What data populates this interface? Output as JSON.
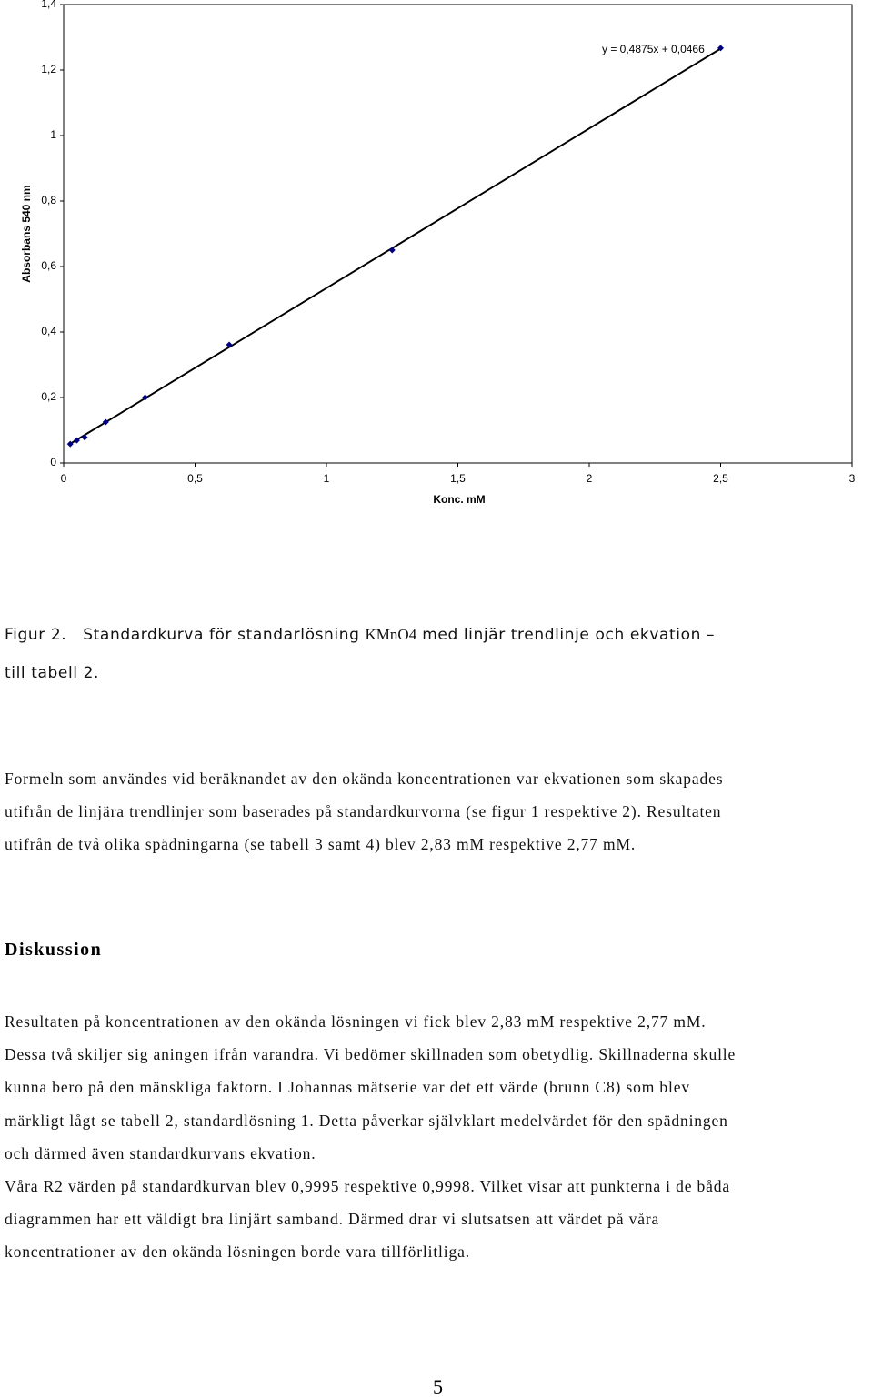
{
  "chart_data": {
    "type": "scatter",
    "x_label": "Konc. mM",
    "y_label": "Absorbans 540 nm",
    "x": [
      0.025,
      0.05,
      0.08,
      0.16,
      0.31,
      0.63,
      1.25,
      2.5
    ],
    "series": [
      {
        "color": "#000080",
        "values": [
          0.058,
          0.069,
          0.078,
          0.125,
          0.2,
          0.361,
          0.65,
          1.267
        ]
      }
    ],
    "trendline": {
      "label": "y = 0,4875x + 0,0466",
      "slope": 0.4875,
      "intercept": 0.0466,
      "color": "#000000"
    },
    "xlim": [
      0,
      3
    ],
    "xticks": [
      0,
      {
        "value": 0.5,
        "label": "0,5"
      },
      1,
      {
        "value": 1.5,
        "label": "1,5"
      },
      2,
      {
        "value": 2.5,
        "label": "2,5"
      },
      3
    ],
    "ylim": [
      0,
      1.4
    ],
    "yticks": [
      0,
      {
        "value": 0.2,
        "label": "0,2"
      },
      {
        "value": 0.4,
        "label": "0,4"
      },
      {
        "value": 0.6,
        "label": "0,6"
      },
      {
        "value": 0.8,
        "label": "0,8"
      },
      1,
      {
        "value": 1.2,
        "label": "1,2"
      },
      {
        "value": 1.4,
        "label": "1,4"
      }
    ],
    "grid": false
  },
  "caption": {
    "label": "Figur 2.",
    "text": "Standardkurva för standarlösning",
    "formula": "KMnO4",
    "rest": "med linjär trendlinje och ekvation –",
    "line2": "till tabell 2."
  },
  "paragraph1": [
    "Formeln som användes vid beräknandet av den okända koncentrationen var ekvationen som skapades",
    "utifrån de linjära trendlinjer som baserades på standardkurvorna (se figur 1 respektive 2). Resultaten",
    "utifrån de två olika spädningarna (se tabell 3 samt 4) blev 2,83 mM respektive 2,77 mM."
  ],
  "heading": "Diskussion",
  "paragraph2": [
    "Resultaten på koncentrationen av den okända lösningen vi fick blev 2,83 mM respektive 2,77 mM.",
    "Dessa två skiljer sig aningen ifrån varandra. Vi bedömer skillnaden som obetydlig. Skillnaderna skulle",
    "kunna bero på den mänskliga faktorn. I Johannas mätserie var det ett värde (brunn C8) som blev",
    "märkligt lågt se tabell 2, standardlösning 1. Detta påverkar självklart medelvärdet för den spädningen",
    "och därmed även standardkurvans ekvation.",
    "Våra R2 värden på standardkurvan blev 0,9995 respektive 0,9998. Vilket visar att punkterna i de båda",
    "diagrammen har ett väldigt bra linjärt samband. Därmed drar vi slutsatsen att värdet på våra",
    "koncentrationer av den okända lösningen borde vara tillförlitliga."
  ],
  "page_number": "5"
}
